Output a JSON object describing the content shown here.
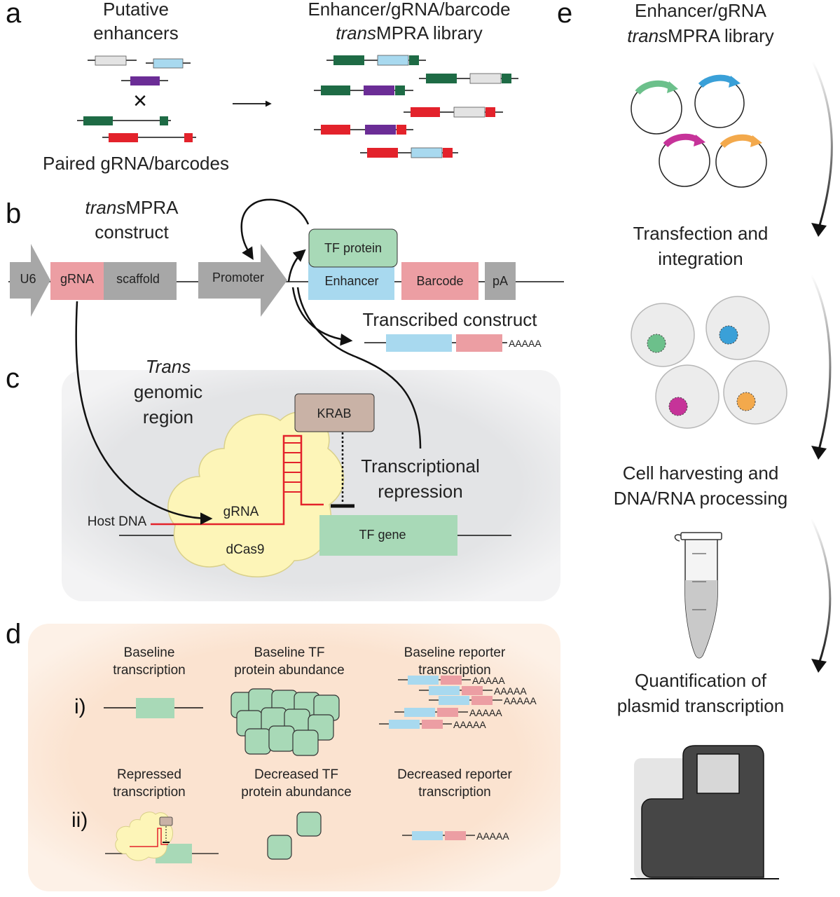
{
  "panels": {
    "a": "a",
    "b": "b",
    "c": "c",
    "d": "d",
    "e": "e"
  },
  "panel_a": {
    "putative_line1": "Putative",
    "putative_line2": "enhancers",
    "cross": "×",
    "paired": "Paired gRNA/barcodes",
    "library_line1": "Enhancer/gRNA/barcode",
    "library_line2_italic": "trans",
    "library_line2_rest": "MPRA library"
  },
  "panel_b": {
    "title_italic": "trans",
    "title_rest": "MPRA",
    "title_line2": "construct",
    "u6": "U6",
    "grna": "gRNA",
    "scaffold": "scaffold",
    "promoter": "Promoter",
    "tf_protein": "TF protein",
    "enhancer": "Enhancer",
    "barcode": "Barcode",
    "pa": "pA",
    "transcribed": "Transcribed construct",
    "polya": "AAAAA"
  },
  "panel_c": {
    "trans_italic": "Trans",
    "genomic": "genomic",
    "region": "region",
    "krab": "KRAB",
    "repression_line1": "Transcriptional",
    "repression_line2": "repression",
    "host_dna": "Host DNA",
    "grna": "gRNA",
    "dcas9": "dCas9",
    "tf_gene": "TF gene"
  },
  "panel_d": {
    "row_i": "i)",
    "row_ii": "ii)",
    "baseline_transcription_1": "Baseline",
    "baseline_transcription_2": "transcription",
    "baseline_tf_1": "Baseline TF",
    "baseline_tf_2": "protein abundance",
    "baseline_reporter_1": "Baseline reporter",
    "baseline_reporter_2": "transcription",
    "repressed_1": "Repressed",
    "repressed_2": "transcription",
    "decreased_tf_1": "Decreased TF",
    "decreased_tf_2": "protein abundance",
    "decreased_reporter_1": "Decreased reporter",
    "decreased_reporter_2": "transcription",
    "polya": "AAAAA"
  },
  "panel_e": {
    "library_line1": "Enhancer/gRNA",
    "library_line2_italic": "trans",
    "library_line2_rest": "MPRA library",
    "transfection_1": "Transfection and",
    "transfection_2": "integration",
    "harvest_1": "Cell harvesting and",
    "harvest_2": "DNA/RNA processing",
    "quant_1": "Quantification of",
    "quant_2": "plasmid transcription"
  },
  "colors": {
    "dark_green": "#1e6b45",
    "light_gray": "#e3e3e3",
    "light_blue": "#a8d9ef",
    "purple": "#6b2d96",
    "red": "#e3222b",
    "pink": "#ec9ea3",
    "mint": "#a8d9b7",
    "gray_arrow": "#a7a7a7",
    "krab": "#c9b2a6",
    "dcas9": "#fdf5b8",
    "panel_c_bg": "#e5e6e8",
    "panel_d_bg": "#fbe4d2",
    "plasmid_green": "#6cc08b",
    "plasmid_blue": "#3aa0d8",
    "plasmid_magenta": "#c63399",
    "plasmid_orange": "#f3a94c"
  }
}
